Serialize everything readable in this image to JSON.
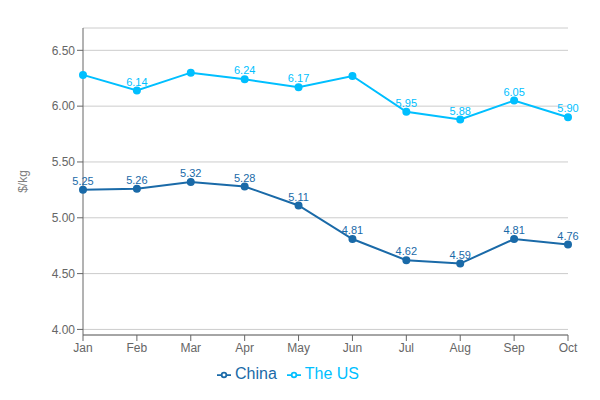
{
  "chart_data": {
    "type": "line",
    "categories": [
      "Jan",
      "Feb",
      "Mar",
      "Apr",
      "May",
      "Jun",
      "Jul",
      "Aug",
      "Sep",
      "Oct"
    ],
    "series": [
      {
        "name": "China",
        "color": "#1a6aa8",
        "values": [
          5.25,
          5.26,
          5.32,
          5.28,
          5.11,
          4.81,
          4.62,
          4.59,
          4.81,
          4.76
        ],
        "value_labels": [
          "5.25",
          "5.26",
          "5.32",
          "5.28",
          "5.11",
          "4.81",
          "4.62",
          "4.59",
          "4.81",
          "4.76"
        ]
      },
      {
        "name": "The US",
        "color": "#00bfff",
        "values": [
          6.28,
          6.14,
          6.3,
          6.24,
          6.17,
          6.27,
          5.95,
          5.88,
          6.05,
          5.9
        ],
        "value_labels": [
          null,
          "6.14",
          null,
          "6.24",
          "6.17",
          null,
          "5.95",
          "5.88",
          "6.05",
          "5.90"
        ]
      }
    ],
    "y_label": "$/kg",
    "ylim": [
      3.95,
      6.7
    ],
    "yticks": [
      {
        "value": 4.0,
        "label": "4.00"
      },
      {
        "value": 4.5,
        "label": "4.50"
      },
      {
        "value": 5.0,
        "label": "5.00"
      },
      {
        "value": 5.5,
        "label": "5.50"
      },
      {
        "value": 6.0,
        "label": "6.00"
      },
      {
        "value": 6.5,
        "label": "6.50"
      }
    ],
    "grid": true,
    "legend": "bottom",
    "marker": "circle",
    "data_labels": true
  }
}
